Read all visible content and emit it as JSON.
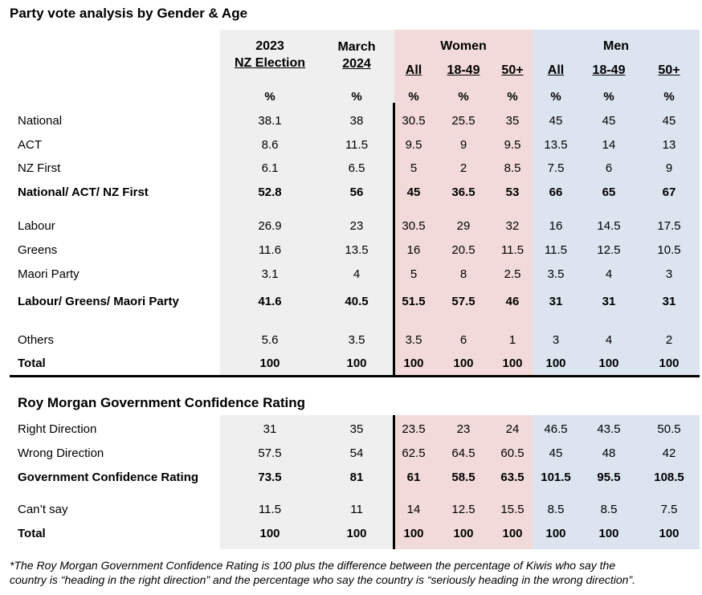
{
  "title": "Party vote analysis by Gender & Age",
  "columns": {
    "election": [
      "2023",
      "NZ Election"
    ],
    "march": [
      "March",
      "2024"
    ],
    "women": {
      "label": "Women",
      "subs": [
        "All",
        "18-49",
        "50+"
      ]
    },
    "men": {
      "label": "Men",
      "subs": [
        "All",
        "18-49",
        "50+"
      ]
    },
    "units": [
      "%",
      "%",
      "%",
      "%",
      "%",
      "%",
      "%",
      "%"
    ]
  },
  "party_vote": {
    "rows": [
      {
        "label": "National",
        "bold": false,
        "values": [
          38.1,
          38,
          30.5,
          25.5,
          35,
          45,
          45,
          45
        ]
      },
      {
        "label": "ACT",
        "bold": false,
        "values": [
          8.6,
          11.5,
          9.5,
          9,
          9.5,
          13.5,
          14,
          13
        ]
      },
      {
        "label": "NZ First",
        "bold": false,
        "values": [
          6.1,
          6.5,
          5,
          2,
          8.5,
          7.5,
          6,
          9
        ]
      },
      {
        "label": "National/ ACT/ NZ First",
        "bold": true,
        "values": [
          52.8,
          56,
          45,
          36.5,
          53,
          66,
          65,
          67
        ]
      },
      {
        "label": "Labour",
        "bold": false,
        "values": [
          26.9,
          23,
          30.5,
          29,
          32,
          16,
          14.5,
          17.5
        ]
      },
      {
        "label": "Greens",
        "bold": false,
        "values": [
          11.6,
          13.5,
          16,
          20.5,
          11.5,
          11.5,
          12.5,
          10.5
        ]
      },
      {
        "label": "Maori Party",
        "bold": false,
        "values": [
          3.1,
          4,
          5,
          8,
          2.5,
          3.5,
          4,
          3
        ]
      },
      {
        "label": "Labour/ Greens/ Maori Party",
        "bold": true,
        "values": [
          41.6,
          40.5,
          51.5,
          57.5,
          46,
          31,
          31,
          31
        ]
      },
      {
        "label": "Others",
        "bold": false,
        "values": [
          5.6,
          3.5,
          3.5,
          6,
          1,
          3,
          4,
          2
        ]
      },
      {
        "label": "Total",
        "bold": true,
        "values": [
          100,
          100,
          100,
          100,
          100,
          100,
          100,
          100
        ]
      }
    ]
  },
  "confidence": {
    "title": "Roy Morgan Government Confidence Rating",
    "rows": [
      {
        "label": "Right Direction",
        "bold": false,
        "values": [
          31,
          35,
          23.5,
          23,
          24,
          46.5,
          43.5,
          50.5
        ]
      },
      {
        "label": "Wrong Direction",
        "bold": false,
        "values": [
          57.5,
          54,
          62.5,
          64.5,
          60.5,
          45,
          48,
          42
        ]
      },
      {
        "label": "Government Confidence Rating",
        "bold": true,
        "values": [
          73.5,
          81,
          61,
          58.5,
          63.5,
          101.5,
          95.5,
          108.5
        ]
      },
      {
        "label": "Can’t say",
        "bold": false,
        "values": [
          11.5,
          11,
          14,
          12.5,
          15.5,
          8.5,
          8.5,
          7.5
        ]
      },
      {
        "label": "Total",
        "bold": true,
        "values": [
          100,
          100,
          100,
          100,
          100,
          100,
          100,
          100
        ]
      }
    ]
  },
  "footnote": [
    "*The Roy Morgan Government Confidence Rating is 100 plus the difference between the percentage of Kiwis who say the",
    "country is “heading in the right direction” and the percentage who say the country is “seriously heading in the wrong direction”."
  ]
}
